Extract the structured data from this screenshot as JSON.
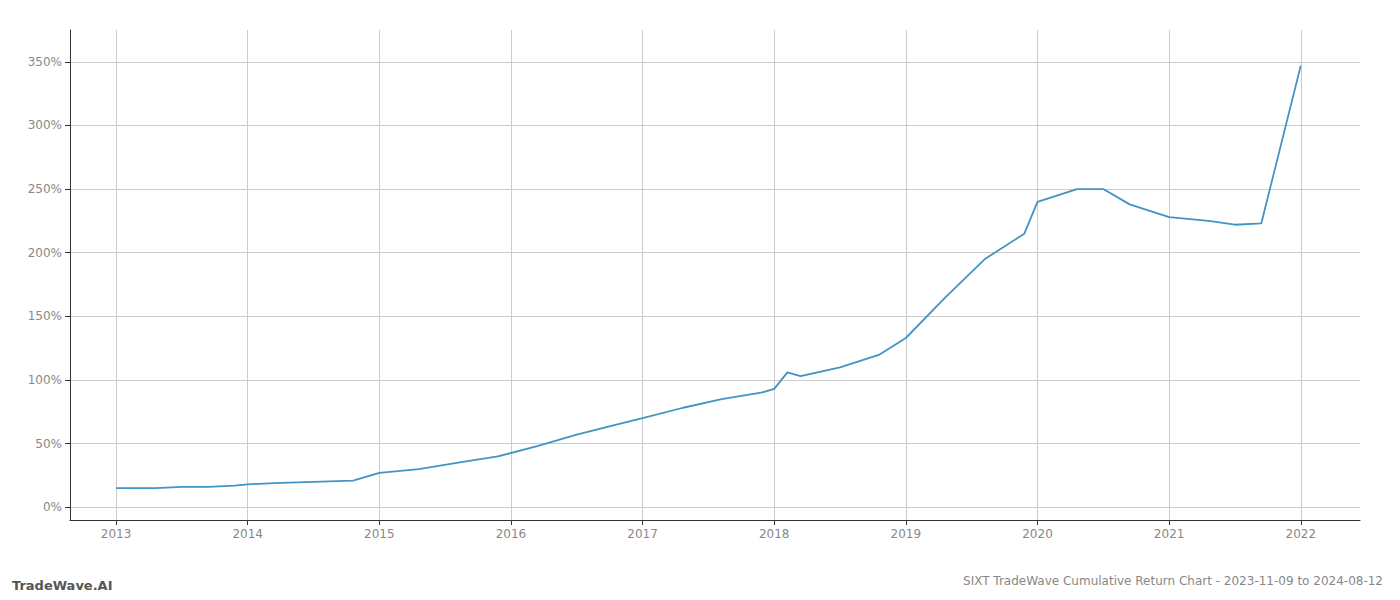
{
  "chart_data": {
    "type": "line",
    "title": "SIXT TradeWave Cumulative Return Chart - 2023-11-09 to 2024-08-12",
    "annotations": [
      "TradeWave.AI"
    ],
    "x": [
      2013.0,
      2013.15,
      2013.3,
      2013.5,
      2013.7,
      2013.9,
      2014.0,
      2014.2,
      2014.5,
      2014.8,
      2015.0,
      2015.3,
      2015.6,
      2015.9,
      2016.2,
      2016.5,
      2016.8,
      2017.0,
      2017.3,
      2017.6,
      2017.9,
      2018.0,
      2018.1,
      2018.2,
      2018.5,
      2018.8,
      2019.0,
      2019.3,
      2019.6,
      2019.9,
      2020.0,
      2020.3,
      2020.5,
      2020.7,
      2021.0,
      2021.3,
      2021.5,
      2021.7,
      2022.0
    ],
    "values": [
      15,
      15,
      15,
      16,
      16,
      17,
      18,
      19,
      20,
      21,
      27,
      30,
      35,
      40,
      48,
      57,
      65,
      70,
      78,
      85,
      90,
      93,
      106,
      103,
      110,
      120,
      133,
      165,
      195,
      215,
      240,
      250,
      250,
      238,
      228,
      225,
      222,
      223,
      347
    ],
    "color": "#4393c4",
    "xlim": [
      2012.65,
      2022.45
    ],
    "xticks": [
      2013,
      2014,
      2015,
      2016,
      2017,
      2018,
      2019,
      2020,
      2021,
      2022
    ],
    "ylim": [
      -10,
      375
    ],
    "yticks": [
      {
        "value": 0,
        "label": "0%"
      },
      {
        "value": 50,
        "label": "50%"
      },
      {
        "value": 100,
        "label": "100%"
      },
      {
        "value": 150,
        "label": "150%"
      },
      {
        "value": 200,
        "label": "200%"
      },
      {
        "value": 250,
        "label": "250%"
      },
      {
        "value": 300,
        "label": "300%"
      },
      {
        "value": 350,
        "label": "350%"
      }
    ],
    "grid": true
  }
}
